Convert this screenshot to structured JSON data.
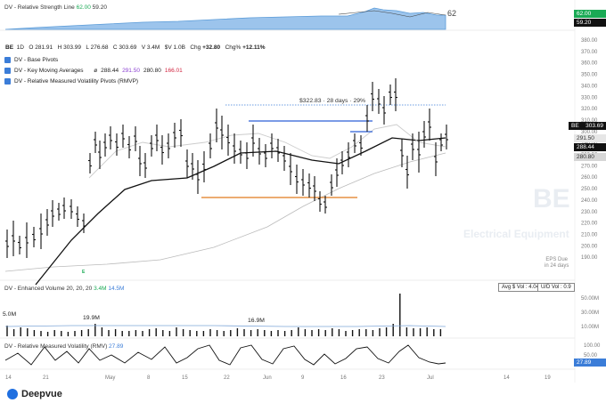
{
  "rs_line": {
    "label": "DV - Relative Strength Line",
    "value1": "62.00",
    "value2": "59.20",
    "rating": "62",
    "tag1": "62.00",
    "tag2": "59.20"
  },
  "ohlc": {
    "symbol": "BE",
    "interval": "1D",
    "o_label": "O",
    "o": "281.91",
    "h_label": "H",
    "h": "303.99",
    "l_label": "L",
    "l": "276.68",
    "c_label": "C",
    "c": "303.69",
    "v_label": "V",
    "v": "3.4M",
    "dv_label": "$V",
    "dv": "1.0B",
    "chg_label": "Chg",
    "chg": "+32.80",
    "chgp_label": "Chg%",
    "chgp": "+12.11%"
  },
  "studies": [
    {
      "label": "DV - Base Pivots"
    },
    {
      "label": "DV - Key Moving Averages",
      "ma_symbol": "ø",
      "ma1": "288.44",
      "ma2": "291.50",
      "ma3": "280.80",
      "ma4": "166.01"
    },
    {
      "label": "DV - Relative Measured Volatility Pivots (RMVP)"
    }
  ],
  "annotation": {
    "text": "$322.83 · 28 days · 29%"
  },
  "watermark": {
    "ticker": "BE",
    "industry": "Electrical Equipment"
  },
  "eps": {
    "line1": "EPS Due",
    "line2": "in 24 days"
  },
  "price_axis": {
    "ticks": [
      "380.00",
      "370.00",
      "360.00",
      "350.00",
      "340.00",
      "330.00",
      "320.00",
      "310.00",
      "300.00",
      "290.00",
      "280.00",
      "270.00",
      "260.00",
      "250.00",
      "240.00",
      "230.00",
      "220.00",
      "210.00",
      "200.00",
      "190.00"
    ]
  },
  "price_tags": [
    {
      "label": "BE",
      "value": "303.69",
      "bg": "#111111",
      "fg": "#ffffff"
    },
    {
      "value": "291.50",
      "bg": "#e6e6e6",
      "fg": "#333333"
    },
    {
      "value": "288.44",
      "bg": "#111111",
      "fg": "#ffffff"
    },
    {
      "value": "280.80",
      "bg": "#d6d6d6",
      "fg": "#333333"
    }
  ],
  "volume": {
    "label": "DV - Enhanced Volume 20, 20, 20",
    "v1": "3.4M",
    "v2": "14.5M",
    "avg_label": "Avg $ Vol : 4.04B",
    "ud_label": "U/D Vol : 0.9",
    "peak_labels": [
      "5.0M",
      "19.9M",
      "16.9M"
    ],
    "ticks": [
      "50.00M",
      "30.00M",
      "10.00M"
    ]
  },
  "rmv": {
    "label": "DV - Relative Measured Volatility (RMV)",
    "value": "27.89",
    "ticks": [
      "100.00",
      "50.00"
    ],
    "tag": "27.89"
  },
  "x_axis": {
    "ticks": [
      "14",
      "21",
      "May",
      "8",
      "15",
      "22",
      "Jun",
      "9",
      "16",
      "23",
      "Jul",
      "14",
      "19"
    ]
  },
  "logo": {
    "text": "Deepvue"
  },
  "colors": {
    "accent": "#3b7dd8",
    "pivot_orange": "#e07b1e",
    "pivot_blue": "#2c5fd6",
    "rs_fill": "#9cc4ec"
  }
}
